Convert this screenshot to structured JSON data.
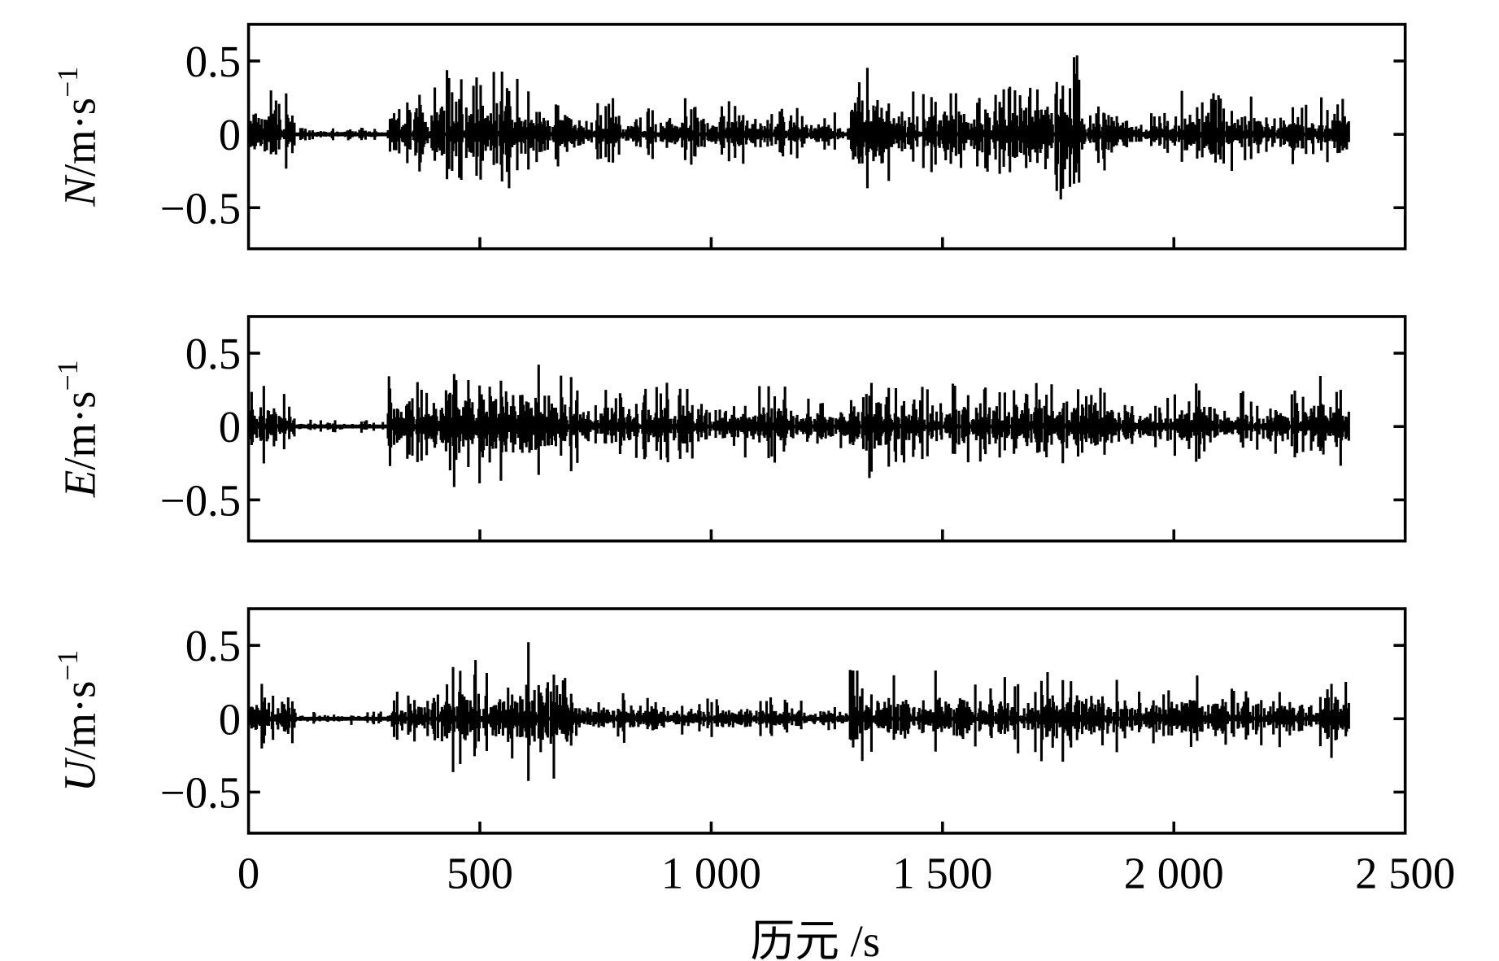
{
  "chart_data": [
    {
      "type": "line",
      "ylabel_var": "N",
      "ylabel_unit": "/m·s",
      "ylabel_exp": "−1",
      "ylim": [
        -0.78,
        0.75
      ],
      "yticks": [
        -0.5,
        0,
        0.5
      ],
      "ytick_labels": [
        "−0.5",
        "0",
        "0.5"
      ],
      "x_range": [
        0,
        2380
      ],
      "envelope_per_100s": [
        0.3,
        0.05,
        0.05,
        0.35,
        0.45,
        0.45,
        0.3,
        0.25,
        0.2,
        0.25,
        0.25,
        0.2,
        0.15,
        0.5,
        0.35,
        0.3,
        0.35,
        0.55,
        0.3,
        0.15,
        0.3,
        0.3,
        0.25,
        0.3
      ],
      "color": "#000000"
    },
    {
      "type": "line",
      "ylabel_var": "E",
      "ylabel_unit": "/m·s",
      "ylabel_exp": "−1",
      "ylim": [
        -0.78,
        0.75
      ],
      "yticks": [
        -0.5,
        0,
        0.5
      ],
      "ytick_labels": [
        "−0.5",
        "0",
        "0.5"
      ],
      "x_range": [
        0,
        2380
      ],
      "envelope_per_100s": [
        0.3,
        0.05,
        0.05,
        0.35,
        0.5,
        0.5,
        0.45,
        0.3,
        0.3,
        0.3,
        0.25,
        0.3,
        0.2,
        0.45,
        0.3,
        0.3,
        0.3,
        0.3,
        0.3,
        0.2,
        0.3,
        0.25,
        0.25,
        0.35
      ],
      "color": "#000000"
    },
    {
      "type": "line",
      "ylabel_var": "U",
      "ylabel_unit": "/m·s",
      "ylabel_exp": "−1",
      "ylim": [
        -0.78,
        0.75
      ],
      "yticks": [
        -0.5,
        0,
        0.5
      ],
      "ytick_labels": [
        "−0.5",
        "0",
        "0.5"
      ],
      "x_range": [
        0,
        2380
      ],
      "envelope_per_100s": [
        0.25,
        0.05,
        0.05,
        0.2,
        0.45,
        0.35,
        0.6,
        0.15,
        0.2,
        0.15,
        0.15,
        0.15,
        0.1,
        0.35,
        0.35,
        0.3,
        0.3,
        0.35,
        0.3,
        0.2,
        0.3,
        0.25,
        0.25,
        0.35
      ],
      "color": "#000000"
    }
  ],
  "xaxis": {
    "label": "历元 /s",
    "xlim": [
      0,
      2500
    ],
    "ticks": [
      0,
      500,
      1000,
      1500,
      2000,
      2500
    ],
    "tick_labels": [
      "0",
      "500",
      "1 000",
      "1 500",
      "2 000",
      "2 500"
    ]
  }
}
